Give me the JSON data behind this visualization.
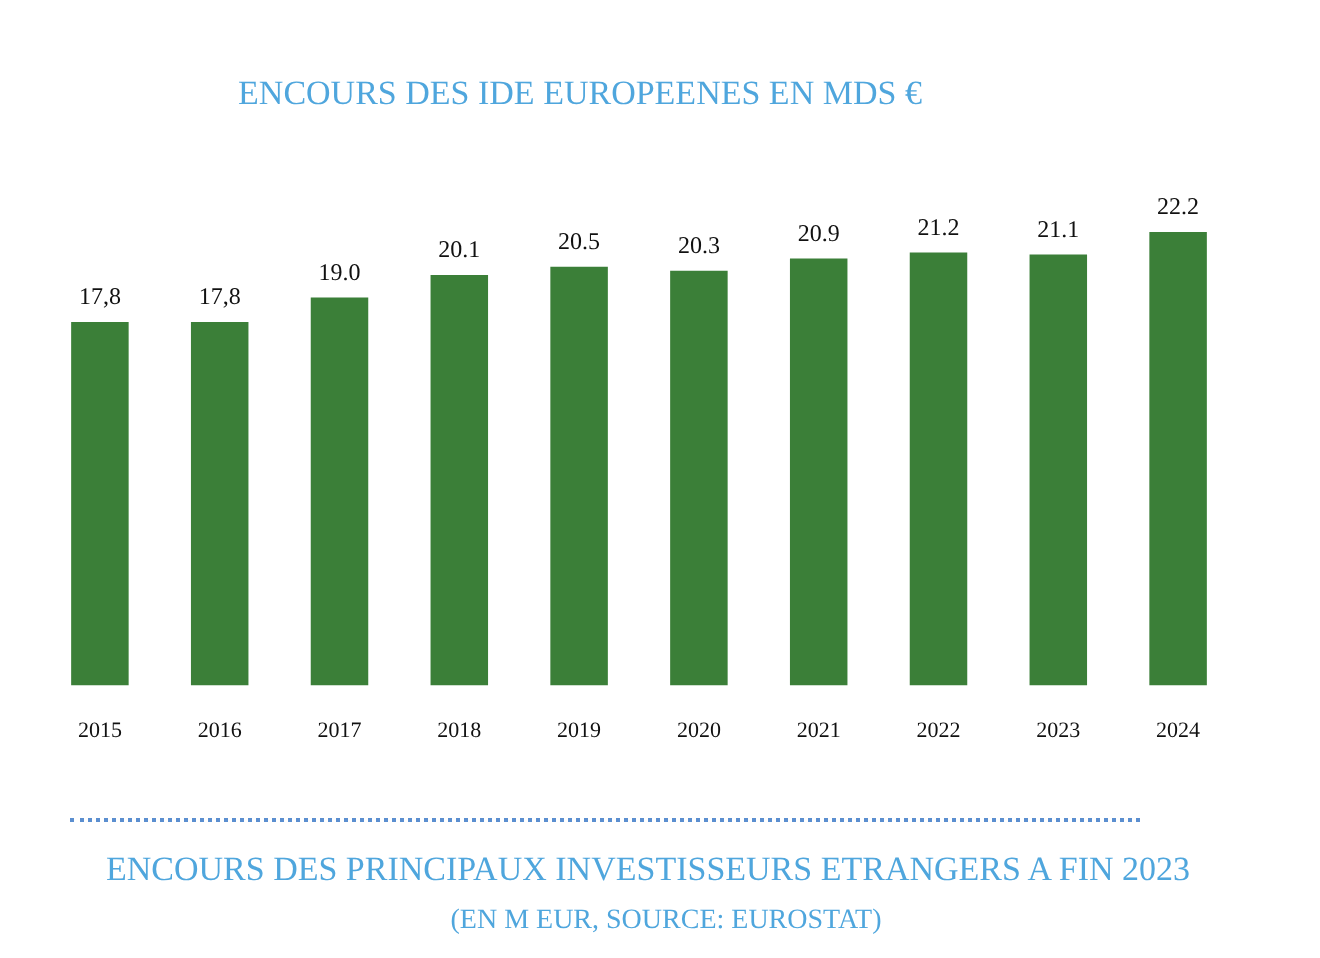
{
  "chart_data": {
    "type": "bar",
    "title": "ENCOURS DES IDE EUROPEENES EN MDS €",
    "categories": [
      "2015",
      "2016",
      "2017",
      "2018",
      "2019",
      "2020",
      "2021",
      "2022",
      "2023",
      "2024"
    ],
    "values": [
      17.8,
      17.8,
      19.0,
      20.1,
      20.5,
      20.3,
      20.9,
      21.2,
      21.1,
      22.2
    ],
    "value_labels": [
      "17,8",
      "17,8",
      "19.0",
      "20.1",
      "20.5",
      "20.3",
      "20.9",
      "21.2",
      "21.1",
      "22.2"
    ],
    "color": "#3b7f38",
    "annotations": [
      "ENCOURS DES PRINCIPAUX INVESTISSEURS ETRANGERS A FIN 2023",
      "(EN M EUR, SOURCE: EUROSTAT)"
    ]
  }
}
